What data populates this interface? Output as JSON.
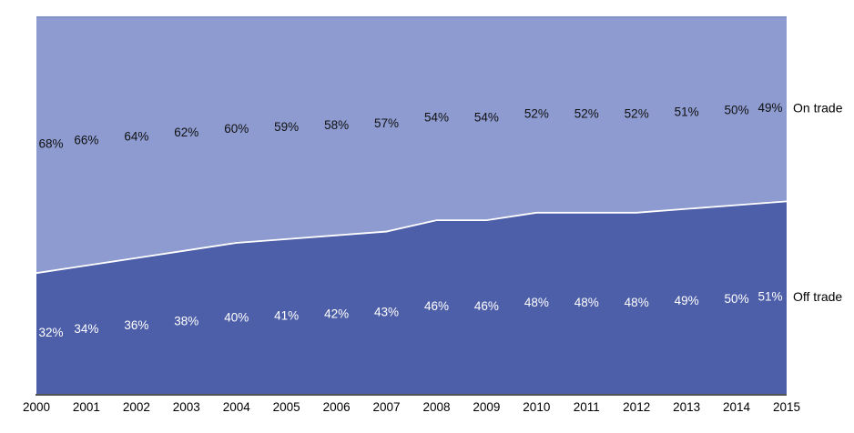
{
  "chart_data": {
    "type": "area",
    "stacked": true,
    "title": "",
    "xlabel": "",
    "ylabel": "",
    "x": [
      2000,
      2001,
      2002,
      2003,
      2004,
      2005,
      2006,
      2007,
      2008,
      2009,
      2010,
      2011,
      2012,
      2013,
      2014,
      2015
    ],
    "series": [
      {
        "name": "Off trade",
        "color": "#4e5fa9",
        "label_color": "#ffffff",
        "values": [
          32,
          34,
          36,
          38,
          40,
          41,
          42,
          43,
          46,
          46,
          48,
          48,
          48,
          49,
          50,
          51
        ]
      },
      {
        "name": "On trade",
        "color": "#8d9bd0",
        "label_color": "#111111",
        "values": [
          68,
          66,
          64,
          62,
          60,
          59,
          58,
          57,
          54,
          54,
          52,
          52,
          52,
          51,
          50,
          49
        ]
      }
    ],
    "value_suffix": "%",
    "ylim": [
      0,
      100
    ],
    "grid": false,
    "legend_position": "right-inline",
    "divider_color": "#ffffff",
    "axis_color": "#1a1a1a",
    "plot_top_border_color": "#7b89c2",
    "background": "#ffffff",
    "tick_label_color": "#000000",
    "series_label_color": "#000000"
  }
}
